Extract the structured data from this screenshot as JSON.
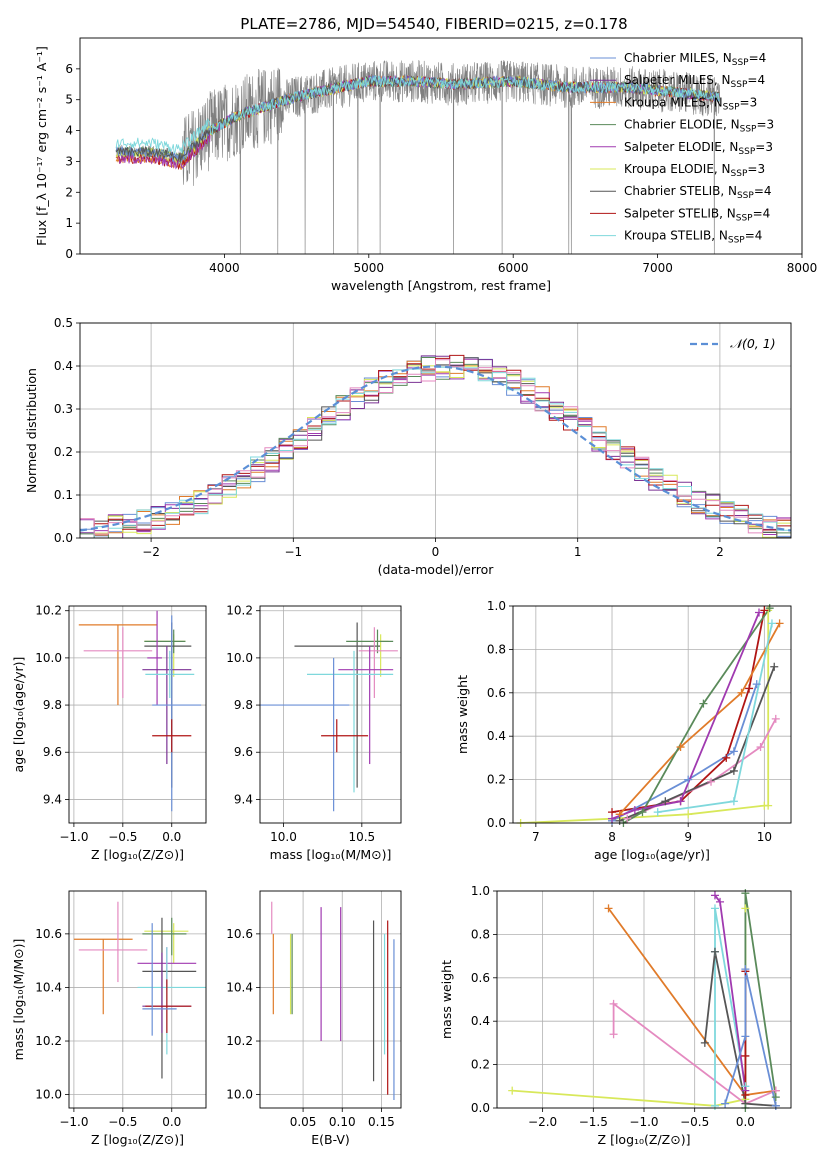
{
  "title": "PLATE=2786, MJD=54540, FIBERID=0215, z=0.178",
  "colors": {
    "Chabrier MILES": "#6a8fd6",
    "Salpeter MILES": "#7b3294",
    "Kroupa MILES": "#e07b2a",
    "Chabrier ELODIE": "#5a8a5a",
    "Salpeter ELODIE": "#a03ab0",
    "Kroupa ELODIE": "#d8e85a",
    "Chabrier STELIB": "#555555",
    "Salpeter STELIB": "#b01515",
    "Kroupa STELIB": "#7fd8dc",
    "pink": "#e48ac0",
    "data": "#808080",
    "gauss": "#5b8fd6"
  },
  "chart_data": [
    {
      "id": "spectrum",
      "type": "line",
      "xlabel": "wavelength [Angstrom, rest frame]",
      "ylabel": "Flux [f_λ 10⁻¹⁷ erg cm⁻² s⁻¹ A⁻¹]",
      "xlim": [
        3000,
        8000
      ],
      "ylim": [
        0,
        7
      ],
      "xticks": [
        4000,
        5000,
        6000,
        7000,
        8000
      ],
      "yticks": [
        0,
        1,
        2,
        3,
        4,
        5,
        6
      ],
      "legend_position": "right",
      "legend": [
        {
          "base": "Chabrier MILES, N",
          "sub": "SSP",
          "tail": "=4"
        },
        {
          "base": "Salpeter MILES, N",
          "sub": "SSP",
          "tail": "=4"
        },
        {
          "base": "Kroupa MILES, N",
          "sub": "SSP",
          "tail": "=3"
        },
        {
          "base": "Chabrier ELODIE, N",
          "sub": "SSP",
          "tail": "=3"
        },
        {
          "base": "Salpeter ELODIE, N",
          "sub": "SSP",
          "tail": "=3"
        },
        {
          "base": "Kroupa ELODIE, N",
          "sub": "SSP",
          "tail": "=3"
        },
        {
          "base": "Chabrier STELIB, N",
          "sub": "SSP",
          "tail": "=4"
        },
        {
          "base": "Salpeter STELIB, N",
          "sub": "SSP",
          "tail": "=4"
        },
        {
          "base": "Kroupa STELIB, N",
          "sub": "SSP",
          "tail": "=4"
        }
      ],
      "continuum_x": [
        3250,
        3500,
        3700,
        3900,
        4100,
        4300,
        4500,
        4700,
        5000,
        5300,
        5600,
        6000,
        6400,
        6800,
        7200,
        7400
      ],
      "continuum_y": [
        3.3,
        3.3,
        3.1,
        4.0,
        4.5,
        4.8,
        5.1,
        5.3,
        5.6,
        5.6,
        5.5,
        5.6,
        5.4,
        5.4,
        5.2,
        5.1
      ]
    },
    {
      "id": "residuals",
      "type": "histogram",
      "xlabel": "(data-model)/error",
      "ylabel": "Normed distribution",
      "xlim": [
        -2.5,
        2.5
      ],
      "ylim": [
        0,
        0.5
      ],
      "xticks": [
        -2,
        -1,
        0,
        1,
        2
      ],
      "yticks": [
        0.0,
        0.1,
        0.2,
        0.3,
        0.4,
        0.5
      ],
      "legend": "𝒩(0, 1)",
      "bin_width": 0.1
    },
    {
      "id": "age_vs_Z",
      "type": "errorbar",
      "xlabel": "Z [log₁₀(Z/Z⊙)]",
      "ylabel": "age  [log₁₀(age/yr)]",
      "xlim": [
        -1.05,
        0.35
      ],
      "ylim": [
        9.3,
        10.22
      ],
      "xticks": [
        -1.0,
        -0.5,
        0.0
      ],
      "yticks": [
        9.4,
        9.6,
        9.8,
        10.0,
        10.2
      ],
      "points": [
        {
          "c": "Kroupa MILES",
          "x": -0.55,
          "y": 10.14,
          "xe": [
            0.4,
            0.4
          ],
          "ye": [
            0.34,
            0
          ]
        },
        {
          "c": "Kroupa ELODIE",
          "x": 0.02,
          "y": 10.07,
          "xe": [
            0.3,
            0.12
          ],
          "ye": [
            0.15,
            0.03
          ]
        },
        {
          "c": "Chabrier ELODIE",
          "x": 0.02,
          "y": 10.07,
          "xe": [
            0.3,
            0.12
          ],
          "ye": [
            0.05,
            0.05
          ]
        },
        {
          "c": "Chabrier STELIB",
          "x": 0.0,
          "y": 10.05,
          "xe": [
            0.28,
            0.2
          ],
          "ye": [
            0.6,
            0.1
          ]
        },
        {
          "c": "pink",
          "x": -0.5,
          "y": 10.03,
          "xe": [
            0.4,
            0.3
          ],
          "ye": [
            0.2,
            0.1
          ]
        },
        {
          "c": "Salpeter ELODIE",
          "x": -0.15,
          "y": 10.0,
          "xe": [
            0.1,
            0.05
          ],
          "ye": [
            0.2,
            0.2
          ]
        },
        {
          "c": "Salpeter MILES",
          "x": -0.05,
          "y": 9.95,
          "xe": [
            0.25,
            0.25
          ],
          "ye": [
            0.4,
            0.1
          ]
        },
        {
          "c": "Kroupa STELIB",
          "x": -0.02,
          "y": 9.93,
          "xe": [
            0.25,
            0.25
          ],
          "ye": [
            0.1,
            0.1
          ]
        },
        {
          "c": "Chabrier MILES",
          "x": 0.0,
          "y": 9.8,
          "xe": [
            0.2,
            0.3
          ],
          "ye": [
            0.45,
            0.38
          ]
        },
        {
          "c": "Salpeter STELIB",
          "x": 0.0,
          "y": 9.67,
          "xe": [
            0.2,
            0.2
          ],
          "ye": [
            0.07,
            0.07
          ]
        }
      ]
    },
    {
      "id": "age_vs_mass",
      "type": "errorbar",
      "xlabel": "mass [log₁₀(M/M⊙)]",
      "ylabel": "",
      "xlim": [
        9.85,
        10.75
      ],
      "ylim": [
        9.3,
        10.22
      ],
      "xticks": [
        10.0,
        10.5
      ],
      "yticks": [
        9.4,
        9.6,
        9.8,
        10.0,
        10.2
      ],
      "points": [
        {
          "c": "Chabrier STELIB",
          "x": 10.47,
          "y": 10.05,
          "xe": [
            0.4,
            0.15
          ],
          "ye": [
            0.6,
            0.1
          ]
        },
        {
          "c": "Kroupa ELODIE",
          "x": 10.62,
          "y": 10.07,
          "xe": [
            0.05,
            0.05
          ],
          "ye": [
            0.15,
            0.03
          ]
        },
        {
          "c": "Chabrier ELODIE",
          "x": 10.6,
          "y": 10.07,
          "xe": [
            0.2,
            0.1
          ],
          "ye": [
            0.05,
            0.05
          ]
        },
        {
          "c": "pink",
          "x": 10.58,
          "y": 10.03,
          "xe": [
            0.1,
            0.15
          ],
          "ye": [
            0.2,
            0.1
          ]
        },
        {
          "c": "Salpeter ELODIE",
          "x": 10.55,
          "y": 9.95,
          "xe": [
            0.2,
            0.15
          ],
          "ye": [
            0.4,
            0.1
          ]
        },
        {
          "c": "Kroupa STELIB",
          "x": 10.45,
          "y": 9.93,
          "xe": [
            0.3,
            0.25
          ],
          "ye": [
            0.5,
            0.1
          ]
        },
        {
          "c": "Chabrier MILES",
          "x": 10.32,
          "y": 9.8,
          "xe": [
            0.5,
            0.1
          ],
          "ye": [
            0.45,
            0.2
          ]
        },
        {
          "c": "Salpeter STELIB",
          "x": 10.34,
          "y": 9.67,
          "xe": [
            0.1,
            0.2
          ],
          "ye": [
            0.07,
            0.07
          ]
        }
      ]
    },
    {
      "id": "mass_weight_vs_age",
      "type": "line",
      "xlabel": "age  [log₁₀(age/yr)]",
      "ylabel": "mass weight",
      "xlim": [
        6.7,
        10.35
      ],
      "ylim": [
        0,
        1
      ],
      "xticks": [
        7,
        8,
        9,
        10
      ],
      "yticks": [
        0.0,
        0.2,
        0.4,
        0.6,
        0.8,
        1.0
      ],
      "series": [
        {
          "c": "Kroupa ELODIE",
          "x": [
            6.8,
            8.0,
            9.0,
            10.0,
            10.05,
            10.05
          ],
          "y": [
            0.0,
            0.02,
            0.04,
            0.08,
            0.08,
            0.98
          ]
        },
        {
          "c": "Salpeter STELIB",
          "x": [
            8.0,
            8.9,
            9.5,
            9.8,
            10.0
          ],
          "y": [
            0.05,
            0.1,
            0.3,
            0.62,
            0.98
          ]
        },
        {
          "c": "Chabrier MILES",
          "x": [
            8.0,
            9.0,
            9.6,
            9.9
          ],
          "y": [
            0.01,
            0.2,
            0.33,
            0.64
          ]
        },
        {
          "c": "Kroupa MILES",
          "x": [
            8.1,
            8.9,
            9.7,
            10.2
          ],
          "y": [
            0.04,
            0.35,
            0.6,
            0.92
          ]
        },
        {
          "c": "pink",
          "x": [
            8.2,
            9.3,
            9.95,
            10.15
          ],
          "y": [
            0.02,
            0.19,
            0.35,
            0.48
          ]
        },
        {
          "c": "Chabrier STELIB",
          "x": [
            8.1,
            8.7,
            9.6,
            10.13
          ],
          "y": [
            0.01,
            0.1,
            0.24,
            0.72
          ]
        },
        {
          "c": "Chabrier ELODIE",
          "x": [
            8.15,
            8.4,
            9.2,
            10.07
          ],
          "y": [
            0.0,
            0.05,
            0.55,
            0.99
          ]
        },
        {
          "c": "Salpeter ELODIE",
          "x": [
            8.0,
            8.3,
            8.9,
            9.93
          ],
          "y": [
            0.02,
            0.06,
            0.1,
            0.97
          ]
        },
        {
          "c": "Kroupa STELIB",
          "x": [
            8.6,
            9.6,
            10.1
          ],
          "y": [
            0.05,
            0.1,
            0.92
          ]
        }
      ]
    },
    {
      "id": "mass_vs_Z",
      "type": "errorbar",
      "xlabel": "Z [log₁₀(Z/Z⊙)]",
      "ylabel": "mass [log₁₀(M/M⊙)]",
      "xlim": [
        -1.05,
        0.35
      ],
      "ylim": [
        9.95,
        10.76
      ],
      "xticks": [
        -1.0,
        -0.5,
        0.0
      ],
      "yticks": [
        10.0,
        10.2,
        10.4,
        10.6
      ],
      "points": [
        {
          "c": "Kroupa ELODIE",
          "x": 0.02,
          "y": 10.61,
          "xe": [
            0.3,
            0.15
          ],
          "ye": [
            0.12,
            0.03
          ]
        },
        {
          "c": "Chabrier ELODIE",
          "x": 0.0,
          "y": 10.6,
          "xe": [
            0.3,
            0.15
          ],
          "ye": [
            0.08,
            0.06
          ]
        },
        {
          "c": "Kroupa MILES",
          "x": -0.7,
          "y": 10.58,
          "xe": [
            0.3,
            0.3
          ],
          "ye": [
            0.28,
            0.0
          ]
        },
        {
          "c": "pink",
          "x": -0.55,
          "y": 10.54,
          "xe": [
            0.4,
            0.3
          ],
          "ye": [
            0.12,
            0.18
          ]
        },
        {
          "c": "Salpeter ELODIE",
          "x": -0.05,
          "y": 10.49,
          "xe": [
            0.3,
            0.3
          ],
          "ye": [
            0.1,
            0.06
          ]
        },
        {
          "c": "Chabrier STELIB",
          "x": -0.1,
          "y": 10.46,
          "xe": [
            0.2,
            0.35
          ],
          "ye": [
            0.4,
            0.2
          ]
        },
        {
          "c": "Kroupa STELIB",
          "x": -0.05,
          "y": 10.4,
          "xe": [
            0.3,
            0.4
          ],
          "ye": [
            0.25,
            0.15
          ]
        },
        {
          "c": "Salpeter MILES",
          "x": -0.1,
          "y": 10.33,
          "xe": [
            0.2,
            0.3
          ],
          "ye": [
            0.1,
            0.2
          ]
        },
        {
          "c": "Salpeter STELIB",
          "x": -0.05,
          "y": 10.33,
          "xe": [
            0.22,
            0.25
          ],
          "ye": [
            0.1,
            0.1
          ]
        },
        {
          "c": "Chabrier MILES",
          "x": -0.2,
          "y": 10.32,
          "xe": [
            0.1,
            0.25
          ],
          "ye": [
            0.1,
            0.32
          ]
        }
      ]
    },
    {
      "id": "mass_vs_ebv",
      "type": "errorbar",
      "xlabel": "E(B-V)",
      "ylabel": "",
      "xlim": [
        -0.005,
        0.175
      ],
      "ylim": [
        9.95,
        10.76
      ],
      "xticks": [
        0.05,
        0.1,
        0.15
      ],
      "yticks": [
        10.0,
        10.2,
        10.4,
        10.6
      ],
      "points": [
        {
          "c": "pink",
          "x": 0.01,
          "y": 10.6,
          "xe": [
            0,
            0
          ],
          "ye": [
            0,
            0.12
          ]
        },
        {
          "c": "Kroupa MILES",
          "x": 0.012,
          "y": 10.5,
          "xe": [
            0,
            0
          ],
          "ye": [
            0.2,
            0.1
          ]
        },
        {
          "c": "Kroupa ELODIE",
          "x": 0.034,
          "y": 10.55,
          "xe": [
            0,
            0
          ],
          "ye": [
            0.25,
            0.05
          ]
        },
        {
          "c": "Chabrier ELODIE",
          "x": 0.036,
          "y": 10.5,
          "xe": [
            0,
            0
          ],
          "ye": [
            0.2,
            0.1
          ]
        },
        {
          "c": "Salpeter ELODIE",
          "x": 0.073,
          "y": 10.45,
          "xe": [
            0,
            0
          ],
          "ye": [
            0.25,
            0.25
          ]
        },
        {
          "c": "Salpeter ELODIE",
          "x": 0.098,
          "y": 10.4,
          "xe": [
            0,
            0
          ],
          "ye": [
            0.2,
            0.3
          ]
        },
        {
          "c": "Chabrier STELIB",
          "x": 0.14,
          "y": 10.35,
          "xe": [
            0,
            0
          ],
          "ye": [
            0.3,
            0.3
          ]
        },
        {
          "c": "Kroupa STELIB",
          "x": 0.154,
          "y": 10.4,
          "xe": [
            0,
            0
          ],
          "ye": [
            0.25,
            0.2
          ]
        },
        {
          "c": "Salpeter STELIB",
          "x": 0.158,
          "y": 10.3,
          "xe": [
            0,
            0
          ],
          "ye": [
            0.3,
            0.35
          ]
        },
        {
          "c": "Chabrier MILES",
          "x": 0.166,
          "y": 10.28,
          "xe": [
            0,
            0
          ],
          "ye": [
            0.3,
            0.3
          ]
        }
      ]
    },
    {
      "id": "mass_weight_vs_Z",
      "type": "line",
      "xlabel": "Z [log₁₀(Z/Z⊙)]",
      "ylabel": "mass weight",
      "xlim": [
        -2.45,
        0.45
      ],
      "ylim": [
        0,
        1
      ],
      "xticks": [
        -2.0,
        -1.5,
        -1.0,
        -0.5,
        0.0
      ],
      "yticks": [
        0.0,
        0.2,
        0.4,
        0.6,
        0.8,
        1.0
      ],
      "series": [
        {
          "c": "Kroupa ELODIE",
          "x": [
            -2.3,
            -0.3,
            0.0,
            0.0
          ],
          "y": [
            0.08,
            0.01,
            0.04,
            0.92
          ]
        },
        {
          "c": "Kroupa MILES",
          "x": [
            -1.35,
            0.0,
            0.3
          ],
          "y": [
            0.92,
            0.06,
            0.08
          ]
        },
        {
          "c": "pink",
          "x": [
            -1.3,
            -1.3,
            0.0,
            0.3
          ],
          "y": [
            0.34,
            0.48,
            0.02,
            0.08
          ]
        },
        {
          "c": "Kroupa STELIB",
          "x": [
            -0.3,
            -0.3,
            -0.3,
            0.0
          ],
          "y": [
            0.01,
            0.72,
            0.92,
            0.1
          ]
        },
        {
          "c": "Chabrier STELIB",
          "x": [
            -0.4,
            -0.3,
            0.0,
            0.3
          ],
          "y": [
            0.3,
            0.72,
            0.02,
            0.01
          ]
        },
        {
          "c": "Salpeter ELODIE",
          "x": [
            -0.3,
            -0.25,
            0.0
          ],
          "y": [
            0.98,
            0.95,
            0.08
          ]
        },
        {
          "c": "Chabrier ELODIE",
          "x": [
            0.0,
            0.0,
            0.3
          ],
          "y": [
            0.0,
            0.99,
            0.05
          ]
        },
        {
          "c": "Salpeter STELIB",
          "x": [
            0.0,
            0.0,
            0.0
          ],
          "y": [
            0.24,
            0.63,
            0.06
          ]
        },
        {
          "c": "Chabrier MILES",
          "x": [
            -0.2,
            0.0,
            0.0,
            0.3
          ],
          "y": [
            0.02,
            0.33,
            0.64,
            0.01
          ]
        }
      ]
    }
  ]
}
